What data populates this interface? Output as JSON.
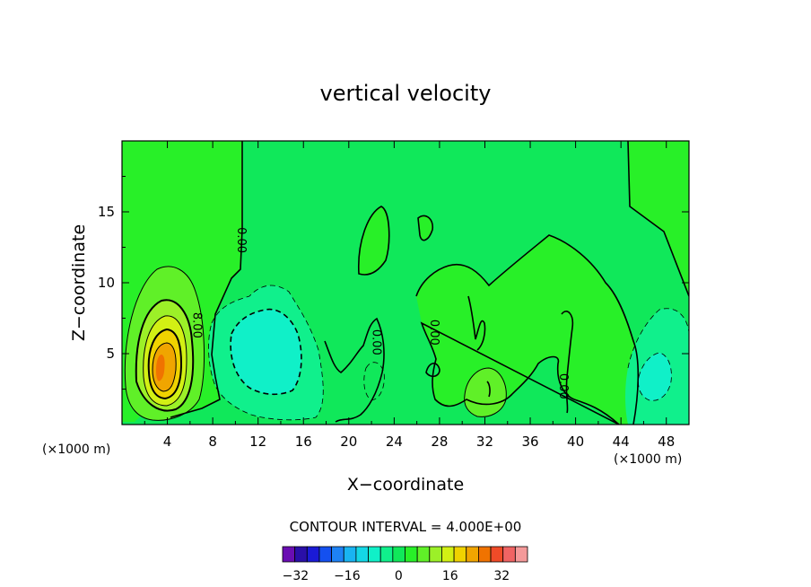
{
  "chart_data": {
    "type": "contour",
    "title": "vertical velocity",
    "xlabel": "X−coordinate",
    "ylabel": "Z−coordinate",
    "x_unit_label": "(×1000 m)",
    "xlim": [
      0,
      50
    ],
    "ylim": [
      0,
      20
    ],
    "x_ticks": [
      "4",
      "8",
      "12",
      "16",
      "20",
      "24",
      "28",
      "32",
      "36",
      "40",
      "44",
      "48"
    ],
    "x_tick_values": [
      4,
      8,
      12,
      16,
      20,
      24,
      28,
      32,
      36,
      40,
      44,
      48
    ],
    "y_ticks": [
      "5",
      "10",
      "15"
    ],
    "y_tick_values": [
      5,
      10,
      15
    ],
    "contour_interval_text": "CONTOUR INTERVAL = 4.000E+00",
    "contour_labels": [
      {
        "text": "0.00",
        "x": 10.2,
        "y": 13.0
      },
      {
        "text": "8.00",
        "x": 6.3,
        "y": 7.0
      },
      {
        "text": "0.00",
        "x": 22.1,
        "y": 5.8
      },
      {
        "text": "0.00",
        "x": 27.2,
        "y": 6.5
      },
      {
        "text": "0.00",
        "x": 38.6,
        "y": 2.7
      }
    ],
    "colorbar": {
      "levels": [
        -36,
        -32,
        -28,
        -24,
        -20,
        -16,
        -12,
        -8,
        -4,
        0,
        4,
        8,
        12,
        16,
        20,
        24,
        28,
        32,
        36,
        40
      ],
      "tick_labels": [
        "−32",
        "−16",
        "0",
        "16",
        "32"
      ],
      "tick_values": [
        -32,
        -16,
        0,
        16,
        32
      ],
      "colors": [
        "#6a0db3",
        "#2a0fa8",
        "#1a1ad6",
        "#1450f0",
        "#1e82f5",
        "#19b4f2",
        "#14d7e6",
        "#10f0c8",
        "#10f08c",
        "#10e85a",
        "#28f028",
        "#60f028",
        "#9cf028",
        "#d2f014",
        "#f0d200",
        "#f0a500",
        "#f07300",
        "#f04b28",
        "#f06464",
        "#f49a9a"
      ]
    },
    "features": [
      {
        "type": "updraft",
        "x": 3.5,
        "y": 4.0,
        "peak": 22
      },
      {
        "type": "downdraft",
        "x": 12,
        "y": 5.5,
        "min": -8
      },
      {
        "type": "downdraft",
        "x": 47,
        "y": 3.5,
        "min": -4
      },
      {
        "type": "updraft",
        "x": 31.5,
        "y": 2.5,
        "peak": 8
      }
    ],
    "grid": false,
    "legend": "colorbar-bottom"
  }
}
